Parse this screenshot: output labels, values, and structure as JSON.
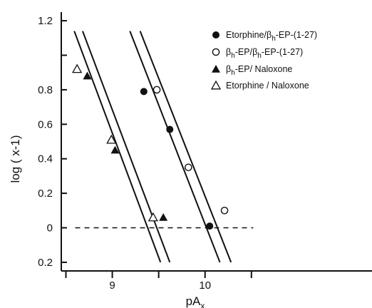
{
  "chart_data": {
    "type": "scatter",
    "title": "",
    "xlabel": "pA",
    "xlabel_subscript": "x",
    "ylabel": "log ( x-1)",
    "xlim": [
      8.45,
      11.8
    ],
    "ylim": [
      -0.25,
      1.25
    ],
    "x_ticks": [
      {
        "value": 9,
        "label": "9"
      },
      {
        "value": 10,
        "label": "10"
      }
    ],
    "x_minor_ticks": [
      8.5,
      9.5,
      10.5
    ],
    "y_ticks": [
      {
        "value": 1.2,
        "label": "1.2"
      },
      {
        "value": 1.0,
        "label": ""
      },
      {
        "value": 0.8,
        "label": "0.8"
      },
      {
        "value": 0.6,
        "label": "0.6"
      },
      {
        "value": 0.4,
        "label": "0.4"
      },
      {
        "value": 0.2,
        "label": "0.2"
      },
      {
        "value": 0.0,
        "label": "0"
      },
      {
        "value": -0.2,
        "label": "0.2"
      }
    ],
    "baseline": {
      "y": 0,
      "x_from": 8.6,
      "x_to": 10.52,
      "style": "dashed"
    },
    "grid": false,
    "legend_position": "top-right",
    "series": [
      {
        "name": "Etorphine/ βh-EP-(1-27)",
        "name_parts": [
          "Etorphine/",
          "β",
          "h",
          "-EP-(1-27)"
        ],
        "marker": "filled-circle",
        "points": [
          [
            9.34,
            0.79
          ],
          [
            9.62,
            0.57
          ],
          [
            10.05,
            0.01
          ]
        ]
      },
      {
        "name": "βh-EP/ βh-EP-(1-27)",
        "name_parts": [
          "",
          "β",
          "h",
          "-EP/",
          "β",
          "h",
          "-EP-(1-27)"
        ],
        "marker": "open-circle",
        "points": [
          [
            9.48,
            0.8
          ],
          [
            9.82,
            0.35
          ],
          [
            10.21,
            0.1
          ]
        ]
      },
      {
        "name": "βh-EP/ Naloxone",
        "name_parts": [
          "",
          "β",
          "h",
          "-EP/ Naloxone"
        ],
        "marker": "filled-triangle",
        "points": [
          [
            8.73,
            0.88
          ],
          [
            9.03,
            0.45
          ],
          [
            9.55,
            0.06
          ]
        ]
      },
      {
        "name": "Etorphine / Naloxone",
        "name_parts": [
          "Etorphine / Naloxone"
        ],
        "marker": "open-triangle",
        "points": [
          [
            8.62,
            0.92
          ],
          [
            8.99,
            0.51
          ],
          [
            9.44,
            0.06
          ]
        ]
      }
    ],
    "fit_lines": [
      {
        "from": [
          8.59,
          1.14
        ],
        "to": [
          9.52,
          -0.2
        ]
      },
      {
        "from": [
          8.68,
          1.14
        ],
        "to": [
          9.62,
          -0.2
        ]
      },
      {
        "from": [
          9.19,
          1.14
        ],
        "to": [
          10.16,
          -0.2
        ]
      },
      {
        "from": [
          9.3,
          1.14
        ],
        "to": [
          10.28,
          -0.2
        ]
      }
    ]
  }
}
